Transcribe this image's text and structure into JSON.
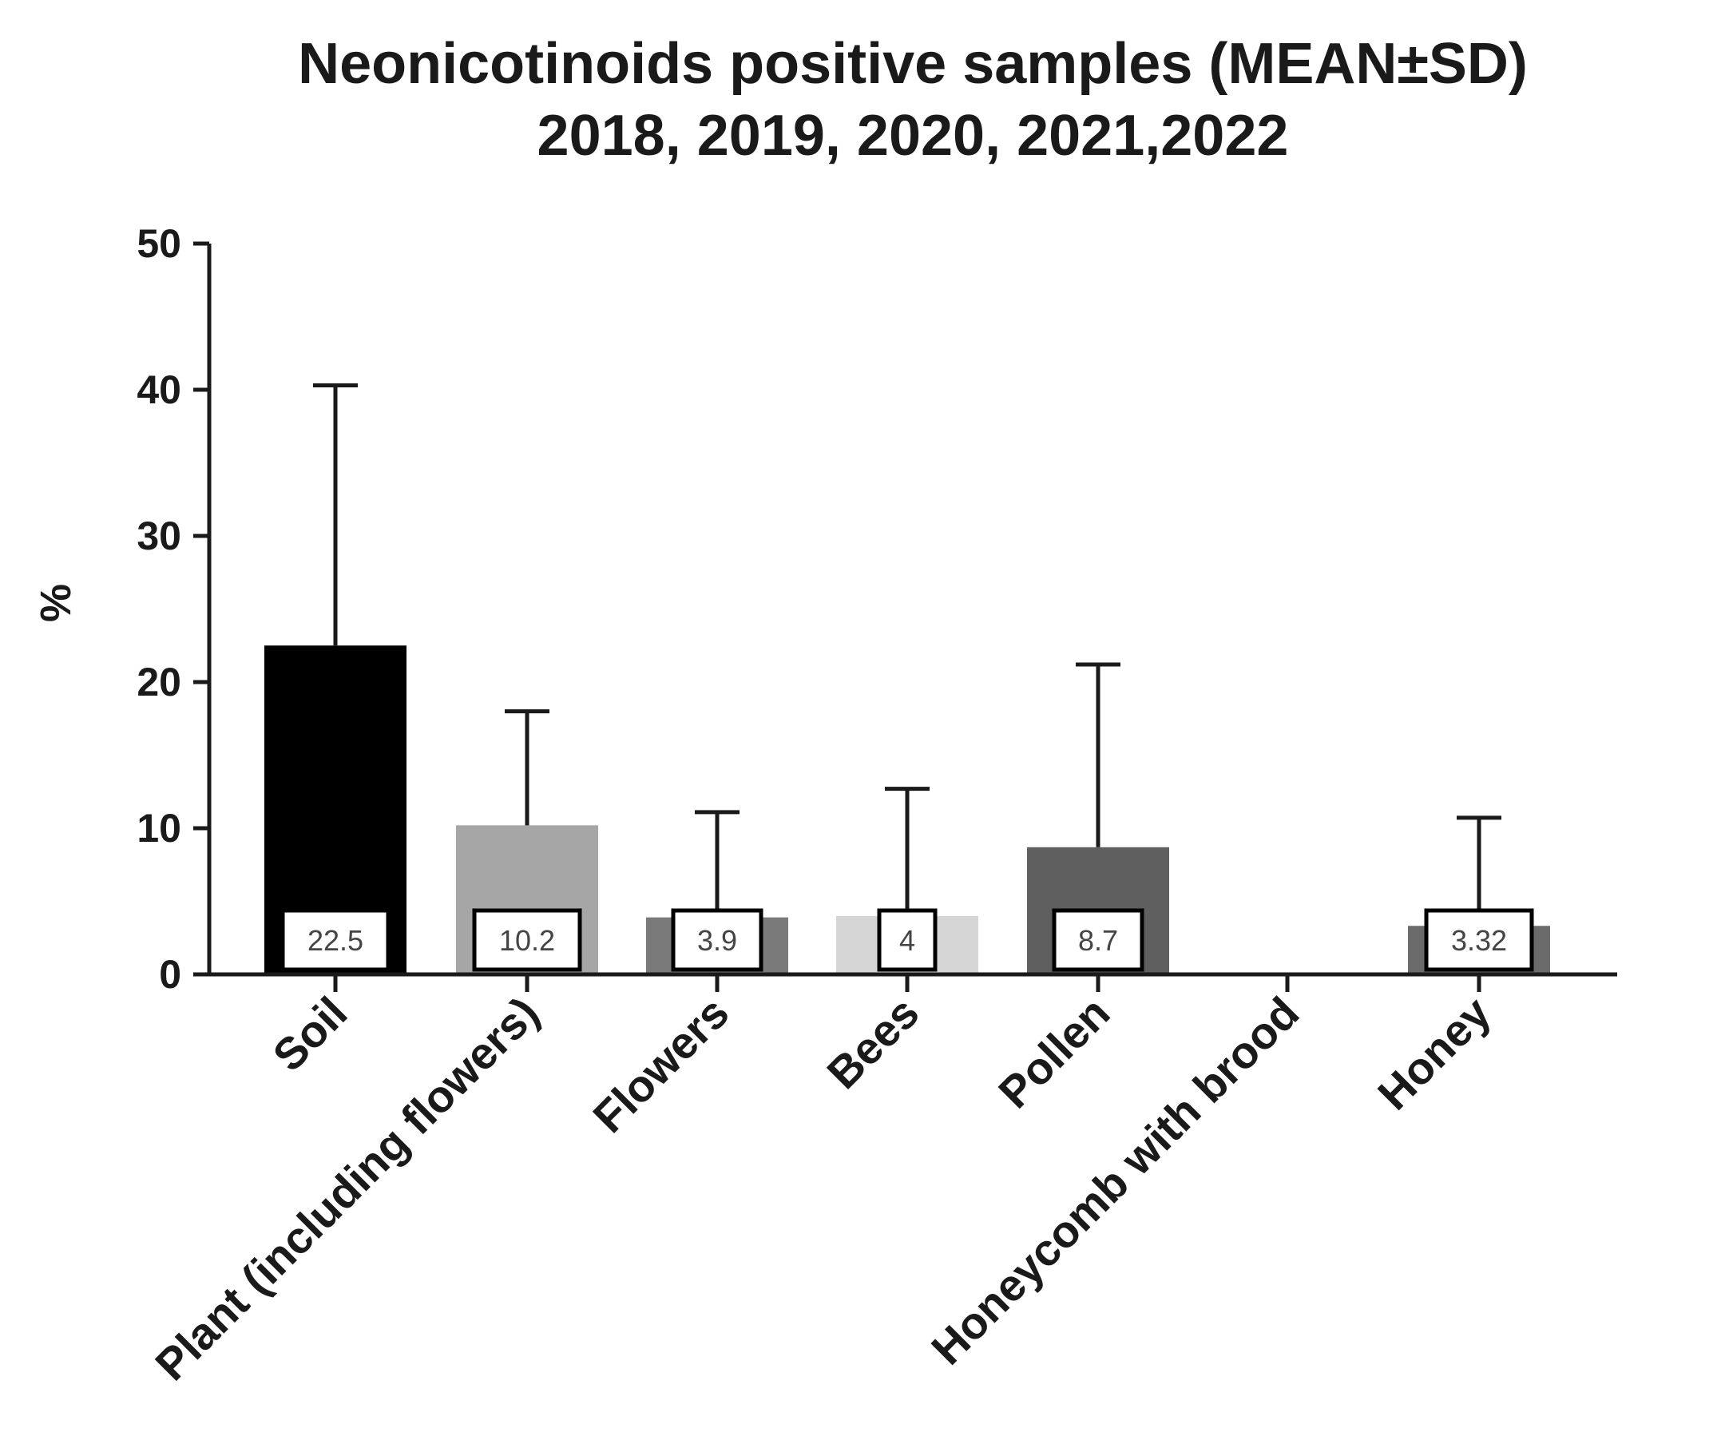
{
  "chart_data": {
    "type": "bar",
    "title_lines": [
      "Neonicotinoids positive samples (MEAN±SD)",
      "2018, 2019, 2020, 2021,2022"
    ],
    "xlabel": "",
    "ylabel": "%",
    "ylim": [
      0,
      50
    ],
    "yticks": [
      "0",
      "10",
      "20",
      "30",
      "40",
      "50"
    ],
    "categories": [
      "Soil",
      "Plant (including flowers)",
      "Flowers",
      "Bees",
      "Pollen",
      "Honeycomb with brood",
      "Honey"
    ],
    "values": [
      22.5,
      10.2,
      3.9,
      4,
      8.7,
      0,
      3.32
    ],
    "error_sd": [
      17.8,
      7.8,
      7.2,
      8.7,
      12.5,
      0,
      7.4
    ],
    "data_labels": [
      "22.5",
      "10.2",
      "3.9",
      "4",
      "8.7",
      "",
      "3.32"
    ],
    "bar_colors": [
      "#000000",
      "#a6a6a6",
      "#7a7a7a",
      "#d6d6d6",
      "#5f5f5f",
      "#5f5f5f",
      "#6b6b6b"
    ],
    "grid": false
  }
}
